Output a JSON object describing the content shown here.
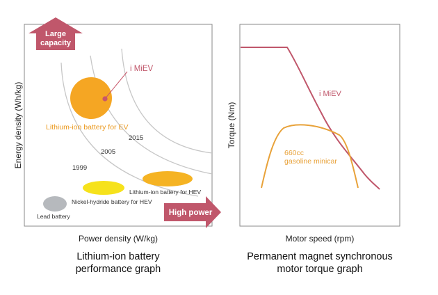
{
  "chart_data": [
    {
      "type": "bubble-map",
      "title": "Lithium-ion battery performance graph",
      "title_lines": [
        "Lithium-ion battery",
        "performance graph"
      ],
      "xlabel": "Power density (W/kg)",
      "ylabel": "Energy density (Wh/kg)",
      "arrows": {
        "up": [
          "Large",
          "capacity"
        ],
        "right": "High power"
      },
      "year_curves": [
        {
          "label": "1999"
        },
        {
          "label": "2005"
        },
        {
          "label": "2015"
        }
      ],
      "regions": [
        {
          "label": "Lead battery",
          "color": "#b4b8bc"
        },
        {
          "label": "Nickel-hydride battery for HEV",
          "color": "#f5e21b"
        },
        {
          "label": "Lithium-ion battery for HEV",
          "color": "#f5b222"
        },
        {
          "label": "Lithium-ion battery for EV",
          "color": "#f5a623"
        }
      ],
      "highlight": {
        "label": "i MiEV",
        "color": "#c8566a"
      }
    },
    {
      "type": "line",
      "title": "Permanent magnet synchronous motor torque graph",
      "title_lines": [
        "Permanent magnet synchronous",
        "motor torque graph"
      ],
      "xlabel": "Motor speed (rpm)",
      "ylabel": "Torque (Nm)",
      "series": [
        {
          "name": "i MiEV",
          "color": "#c0576b"
        },
        {
          "name": "660cc gasoline minicar",
          "label_lines": [
            "660cc",
            "gasoline minicar"
          ],
          "color": "#e8a23a"
        }
      ]
    }
  ]
}
